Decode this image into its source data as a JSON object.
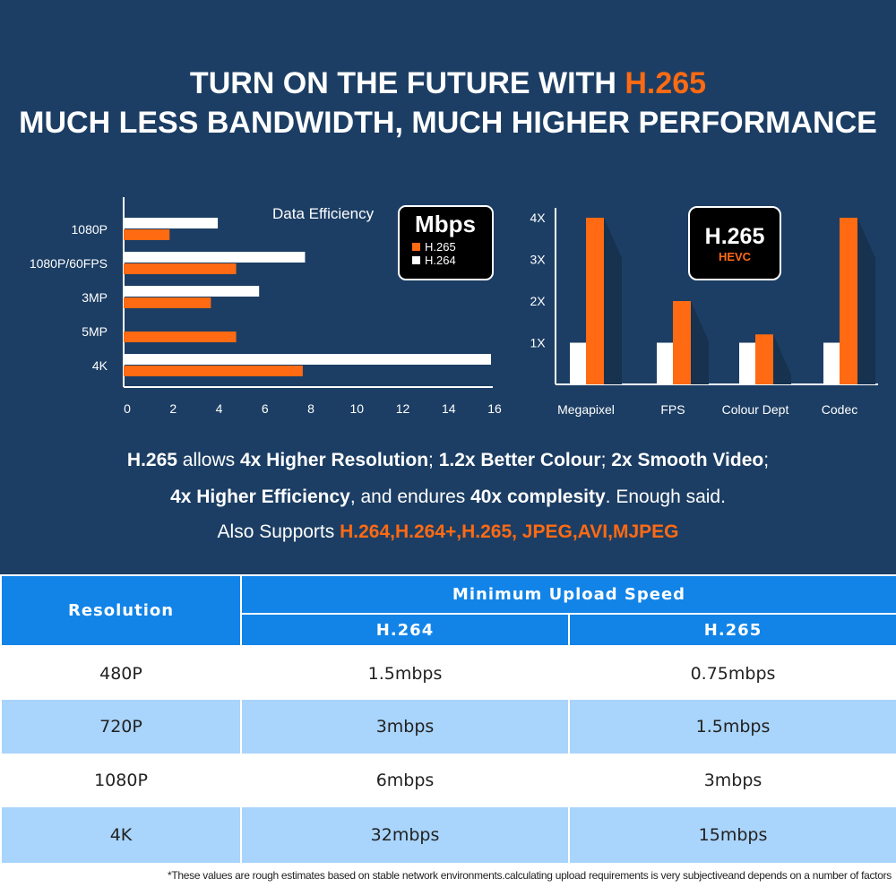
{
  "colors": {
    "background": "#1c3e64",
    "h265": "#ff6a13",
    "h264": "#ffffff",
    "table_header": "#1284e8",
    "row_alt": "#a9d4fb"
  },
  "header": {
    "line1_prefix": "TURN ON THE FUTURE WITH ",
    "line1_highlight": "H.265",
    "line2": "MUCH LESS BANDWIDTH, MUCH HIGHER PERFORMANCE"
  },
  "chart_data": [
    {
      "type": "bar",
      "orientation": "horizontal",
      "title": "Data Efficiency",
      "unit_box": "Mbps",
      "categories": [
        "1080P",
        "1080P/60FPS",
        "3MP",
        "5MP",
        "4K"
      ],
      "series": [
        {
          "name": "H.265",
          "values": [
            2,
            4.9,
            3.8,
            4.9,
            7.8
          ]
        },
        {
          "name": "H.264",
          "values": [
            4.1,
            7.9,
            5.9,
            0,
            16
          ]
        }
      ],
      "xticks": [
        "0",
        "2",
        "4",
        "6",
        "8",
        "10",
        "12",
        "14",
        "16"
      ],
      "xlim": [
        0,
        16
      ],
      "legend": "top-right"
    },
    {
      "type": "bar",
      "title": "H.265",
      "subtitle": "HEVC",
      "categories": [
        "Megapixel",
        "FPS",
        "Colour Dept",
        "Codec"
      ],
      "series": [
        {
          "name": "H.264",
          "values": [
            1,
            1,
            1,
            1
          ]
        },
        {
          "name": "H.265",
          "values": [
            4,
            2,
            1.2,
            4
          ]
        }
      ],
      "yticks": [
        "1X",
        "2X",
        "3X",
        "4X"
      ],
      "ylim": [
        0,
        4.4
      ]
    }
  ],
  "summary": {
    "line1": [
      {
        "text": "H.265",
        "bold": true
      },
      {
        "text": " allows ",
        "bold": false
      },
      {
        "text": "4x Higher Resolution",
        "bold": true
      },
      {
        "text": "; ",
        "bold": false
      },
      {
        "text": "1.2x Better Colour",
        "bold": true
      },
      {
        "text": "; ",
        "bold": false
      },
      {
        "text": "2x Smooth Video",
        "bold": true
      },
      {
        "text": ";",
        "bold": false
      }
    ],
    "line2": [
      {
        "text": "4x Higher Efficiency",
        "bold": true
      },
      {
        "text": ", and endures ",
        "bold": false
      },
      {
        "text": "40x complesity",
        "bold": true
      },
      {
        "text": ". Enough said.",
        "bold": false
      }
    ],
    "line3_prefix": "Also Supports ",
    "line3_formats": "H.264,H.264+,H.265, JPEG,AVI,MJPEG"
  },
  "table": {
    "resolution_header": "Resolution",
    "group_header": "Minimum Upload Speed",
    "codec_headers": [
      "H.264",
      "H.265"
    ],
    "rows": [
      {
        "resolution": "480P",
        "h264": "1.5mbps",
        "h265": "0.75mbps"
      },
      {
        "resolution": "720P",
        "h264": "3mbps",
        "h265": "1.5mbps"
      },
      {
        "resolution": "1080P",
        "h264": "6mbps",
        "h265": "3mbps"
      },
      {
        "resolution": "4K",
        "h264": "32mbps",
        "h265": "15mbps"
      }
    ]
  },
  "footnote": "*These values are rough estimates based on stable network environments.calculating upload requirements is very subjectiveand depends on a number of factors"
}
